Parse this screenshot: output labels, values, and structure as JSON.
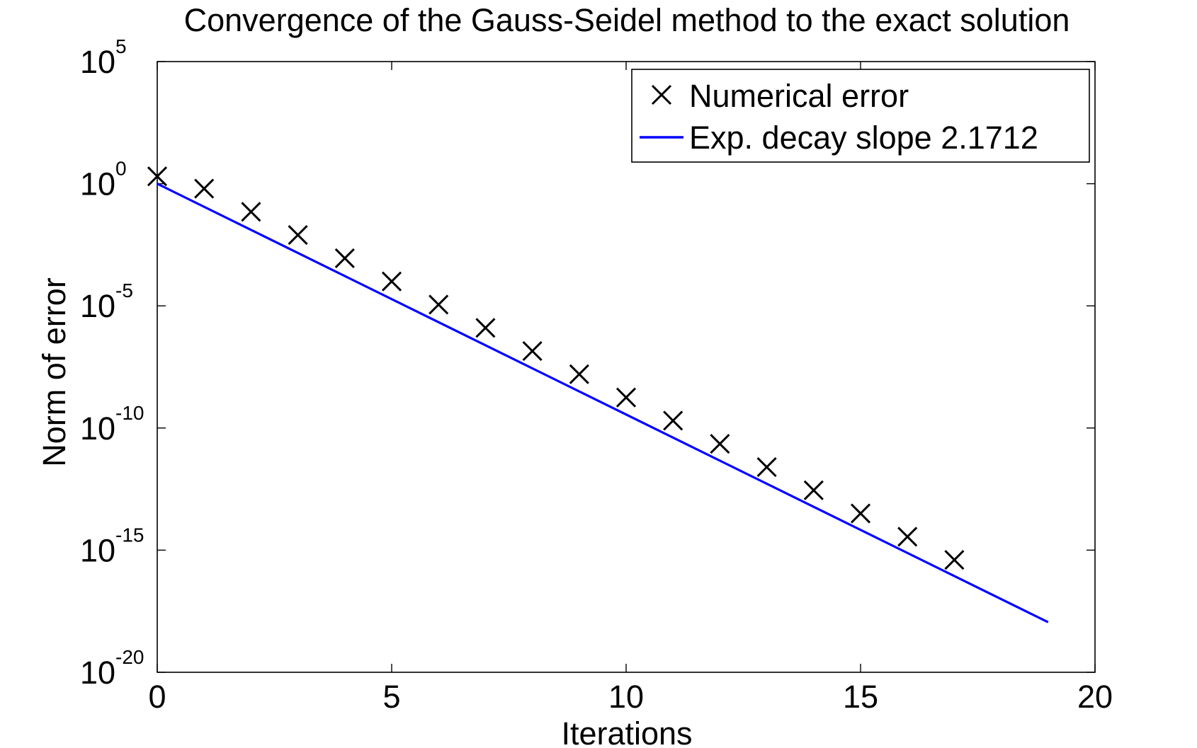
{
  "chart_data": {
    "type": "scatter",
    "title": "Convergence of the Gauss-Seidel method to the exact solution",
    "xlabel": "Iterations",
    "ylabel": "Norm of error",
    "xlim": [
      0,
      20
    ],
    "ylim_exponent": [
      -20,
      5
    ],
    "yscale": "log",
    "x_ticks": [
      "0",
      "5",
      "10",
      "15",
      "20"
    ],
    "y_ticks": [
      {
        "base": "10",
        "exp": "5"
      },
      {
        "base": "10",
        "exp": "0"
      },
      {
        "base": "10",
        "exp": "-5"
      },
      {
        "base": "10",
        "exp": "-10"
      },
      {
        "base": "10",
        "exp": "-15"
      },
      {
        "base": "10",
        "exp": "-20"
      }
    ],
    "grid": false,
    "legend_position": "top-right",
    "series": [
      {
        "name": "Numerical error",
        "kind": "markers",
        "marker": "x",
        "color": "#000000",
        "x": [
          0,
          1,
          2,
          3,
          4,
          5,
          6,
          7,
          8,
          9,
          10,
          11,
          12,
          13,
          14,
          15,
          16,
          17
        ],
        "y_log10": [
          0.3,
          -0.2,
          -1.15,
          -2.1,
          -3.05,
          -4.0,
          -4.95,
          -5.9,
          -6.85,
          -7.8,
          -8.75,
          -9.7,
          -10.65,
          -11.6,
          -12.55,
          -13.5,
          -14.45,
          -15.4
        ]
      },
      {
        "name": "Exp. decay slope 2.1712",
        "kind": "line",
        "color": "#0000ff",
        "x": [
          0,
          19
        ],
        "y_log10": [
          0.0,
          -17.95
        ]
      }
    ],
    "legend": [
      {
        "label": "Numerical error",
        "symbol": "x-marker"
      },
      {
        "label": "Exp. decay slope 2.1712",
        "symbol": "line"
      }
    ]
  }
}
